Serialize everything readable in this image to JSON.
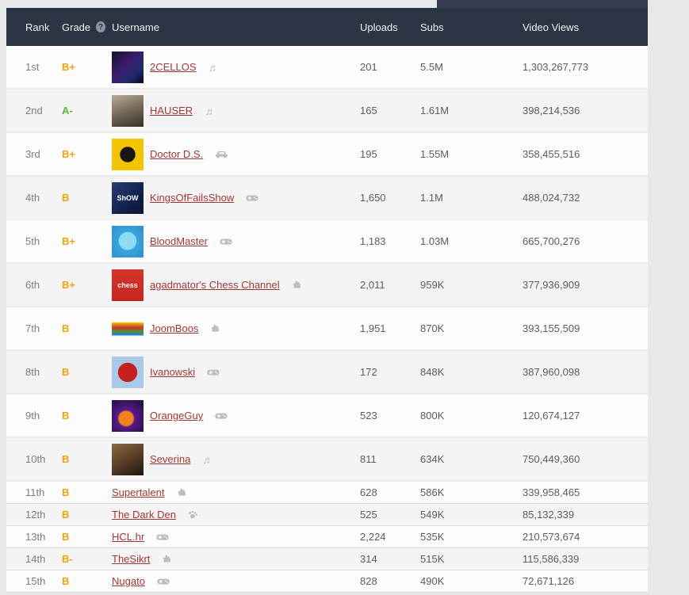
{
  "page": {
    "background": "#e8e8eb",
    "topbar_fragment_color": "#333d4d"
  },
  "table": {
    "header": {
      "rank": "Rank",
      "grade": "Grade",
      "help_icon": "?",
      "username": "Username",
      "uploads": "Uploads",
      "subs": "Subs",
      "video_views": "Video Views",
      "bg_color": "#2b3544"
    },
    "grade_colors": {
      "orange": "#f0a30a",
      "green": "#58b732"
    },
    "link_color": "#9e3733",
    "rows": [
      {
        "rank": "1st",
        "grade": "B+",
        "grade_color": "orange",
        "username": "2CELLOS",
        "category_icon": "music-note-icon",
        "uploads": "201",
        "subs": "5.5M",
        "video_views": "1,303,267,773",
        "avatar": {
          "css": "linear-gradient(135deg,#14102e,#3c1e6e 45%,#1b2a6b 75%,#090614)",
          "label": ""
        }
      },
      {
        "rank": "2nd",
        "grade": "A-",
        "grade_color": "green",
        "username": "HAUSER",
        "category_icon": "music-note-icon",
        "uploads": "165",
        "subs": "1.61M",
        "video_views": "398,214,536",
        "avatar": {
          "css": "linear-gradient(160deg,#b8ab9a,#6e6252 55%,#35302a)",
          "label": ""
        }
      },
      {
        "rank": "3rd",
        "grade": "B+",
        "grade_color": "orange",
        "username": "Doctor D.S.",
        "category_icon": "car-icon",
        "uploads": "195",
        "subs": "1.55M",
        "video_views": "358,455,516",
        "avatar": {
          "css": "radial-gradient(circle at 50% 50%,#181613 34%,#f2c400 35%)",
          "label": ""
        }
      },
      {
        "rank": "4th",
        "grade": "B",
        "grade_color": "orange",
        "username": "KingsOfFailsShow",
        "category_icon": "gamepad-icon",
        "uploads": "1,650",
        "subs": "1.1M",
        "video_views": "488,024,732",
        "avatar": {
          "css": "linear-gradient(135deg,#2a3d77,#13224d 60%,#0a1430)",
          "label": "ShOW"
        }
      },
      {
        "rank": "5th",
        "grade": "B+",
        "grade_color": "orange",
        "username": "BloodMaster",
        "category_icon": "gamepad-icon",
        "uploads": "1,183",
        "subs": "1.03M",
        "video_views": "665,700,276",
        "avatar": {
          "css": "radial-gradient(circle at 50% 48%,#8edcf4 38%,#3aa4dc 40%,#2b8fd0)",
          "label": ""
        }
      },
      {
        "rank": "6th",
        "grade": "B+",
        "grade_color": "orange",
        "username": "agadmator's Chess Channel",
        "category_icon": "puzzle-piece-icon",
        "uploads": "2,011",
        "subs": "959K",
        "video_views": "377,936,909",
        "avatar": {
          "css": "linear-gradient(180deg,#d7352c,#c4261f)",
          "label": "chess"
        }
      },
      {
        "rank": "7th",
        "grade": "B",
        "grade_color": "orange",
        "username": "JoomBoos",
        "category_icon": "puzzle-piece-icon",
        "uploads": "1,951",
        "subs": "870K",
        "video_views": "393,155,509",
        "avatar": {
          "css": "linear-gradient(180deg,#ffffff 28%,#e8b400 32%,#d2322a 46%,#3f9f3c 60%,#2a6fd0 68%,#ffffff 74%)",
          "label": ""
        }
      },
      {
        "rank": "8th",
        "grade": "B",
        "grade_color": "orange",
        "username": "Ivanowski",
        "category_icon": "gamepad-icon",
        "uploads": "172",
        "subs": "848K",
        "video_views": "387,960,098",
        "avatar": {
          "css": "radial-gradient(circle at 50% 50%,#c42020 42%,#a9c9e8 44%)",
          "label": ""
        }
      },
      {
        "rank": "9th",
        "grade": "B",
        "grade_color": "orange",
        "username": "OrangeGuy",
        "category_icon": "gamepad-icon",
        "uploads": "523",
        "subs": "800K",
        "video_views": "120,674,127",
        "avatar": {
          "css": "radial-gradient(circle at 45% 58%,#f08020 28%,#5a1a8a 34%,#2a0f4a 85%)",
          "label": ""
        }
      },
      {
        "rank": "10th",
        "grade": "B",
        "grade_color": "orange",
        "username": "Severina",
        "category_icon": "music-note-icon",
        "uploads": "811",
        "subs": "634K",
        "video_views": "750,449,360",
        "avatar": {
          "css": "linear-gradient(150deg,#8a6a42,#5a3f28 50%,#1e150e)",
          "label": ""
        }
      },
      {
        "rank": "11th",
        "grade": "B",
        "grade_color": "orange",
        "username": "Supertalent",
        "category_icon": "puzzle-piece-icon",
        "uploads": "628",
        "subs": "586K",
        "video_views": "339,958,465",
        "avatar": null
      },
      {
        "rank": "12th",
        "grade": "B",
        "grade_color": "orange",
        "username": "The Dark Den",
        "category_icon": "paw-icon",
        "uploads": "525",
        "subs": "549K",
        "video_views": "85,132,339",
        "avatar": null
      },
      {
        "rank": "13th",
        "grade": "B",
        "grade_color": "orange",
        "username": "HCL.hr",
        "category_icon": "gamepad-icon",
        "uploads": "2,224",
        "subs": "535K",
        "video_views": "210,573,674",
        "avatar": null
      },
      {
        "rank": "14th",
        "grade": "B-",
        "grade_color": "orange",
        "username": "TheSikrt",
        "category_icon": "puzzle-piece-icon",
        "uploads": "314",
        "subs": "515K",
        "video_views": "115,586,339",
        "avatar": null
      },
      {
        "rank": "15th",
        "grade": "B",
        "grade_color": "orange",
        "username": "Nugato",
        "category_icon": "gamepad-icon",
        "uploads": "828",
        "subs": "490K",
        "video_views": "72,671,126",
        "avatar": null
      }
    ]
  }
}
